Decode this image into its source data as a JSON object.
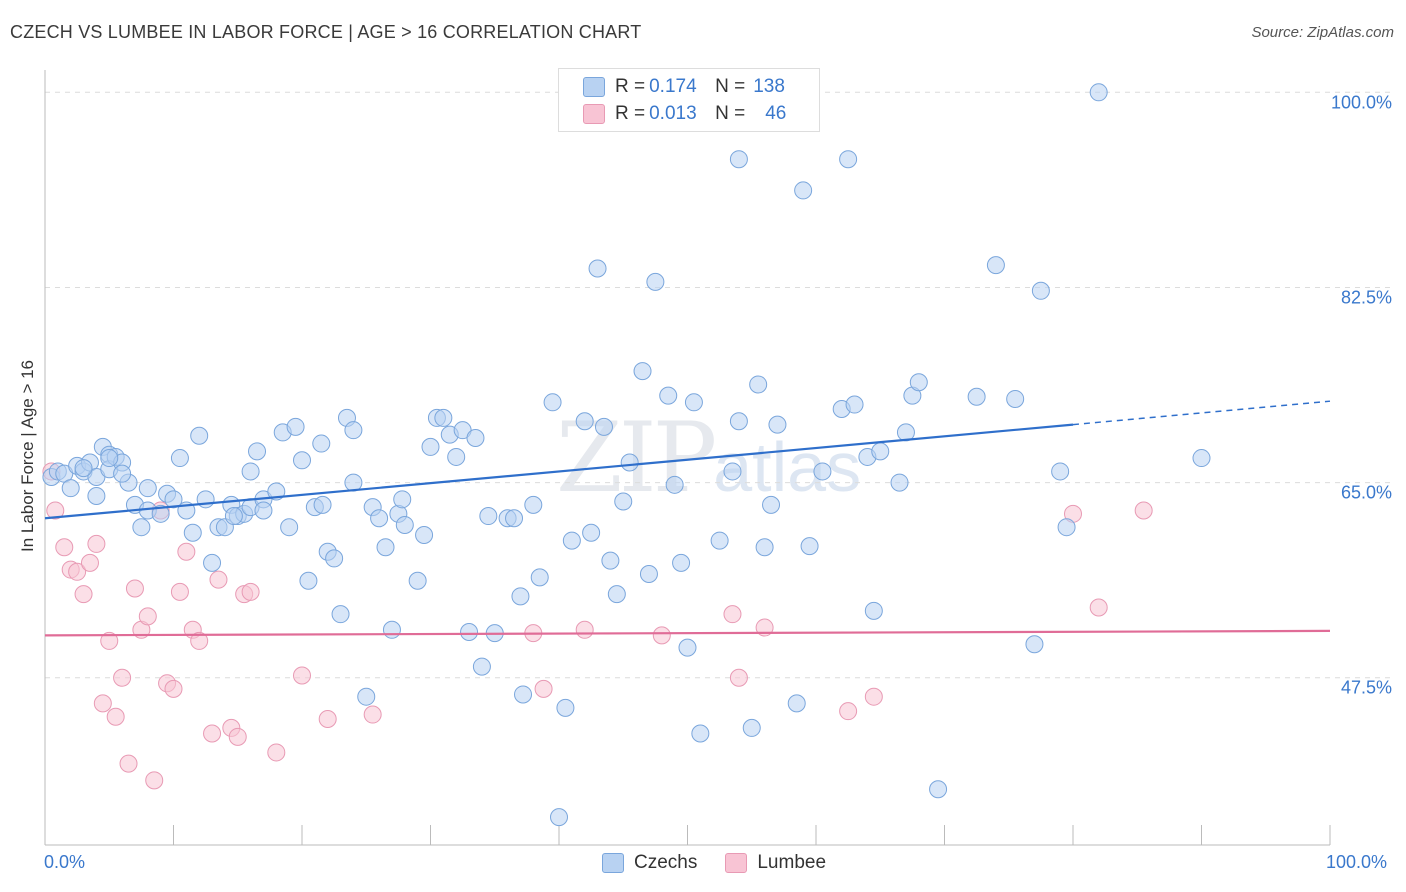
{
  "title": "CZECH VS LUMBEE IN LABOR FORCE | AGE > 16 CORRELATION CHART",
  "source": "Source: ZipAtlas.com",
  "watermark": {
    "part1": "ZIP",
    "part2": "atlas"
  },
  "legend": {
    "czechs": {
      "r_label": "R = ",
      "r_value": "0.174",
      "n_label": "N = ",
      "n_value": "138"
    },
    "lumbee": {
      "r_label": "R = ",
      "r_value": "0.013",
      "n_label": "N = ",
      "n_value": "46"
    }
  },
  "colors": {
    "czechs_fill": "#b8d2f2",
    "czechs_stroke": "#7aa6dc",
    "czechs_line": "#2f6fcb",
    "lumbee_fill": "#f8c4d4",
    "lumbee_stroke": "#e89ab4",
    "lumbee_line": "#e06c97",
    "tick_label": "#3a78cc",
    "grid": "#dcdcdc"
  },
  "chart_data": {
    "type": "scatter",
    "xlabel": "",
    "ylabel": "In Labor Force | Age > 16",
    "xlim": [
      0,
      100
    ],
    "ylim": [
      32.5,
      102
    ],
    "x_tick_labels": [
      "0.0%",
      "100.0%"
    ],
    "y_ticks": [
      47.5,
      65.0,
      82.5,
      100.0
    ],
    "y_tick_labels": [
      "47.5%",
      "65.0%",
      "82.5%",
      "100.0%"
    ],
    "grid": "horizontal dashed",
    "legend": [
      "Czechs",
      "Lumbee"
    ],
    "series": [
      {
        "name": "Czechs",
        "trend": {
          "x0": 0,
          "y0": 61.8,
          "x1": 80,
          "y1": 70.2,
          "dashed_to_x": 100,
          "dashed_to_y": 72.3
        },
        "points": [
          [
            0.5,
            65.5
          ],
          [
            1,
            66
          ],
          [
            1.5,
            65.8
          ],
          [
            2,
            64.5
          ],
          [
            2.5,
            66.5
          ],
          [
            3,
            66
          ],
          [
            3.5,
            66.8
          ],
          [
            4,
            65.5
          ],
          [
            4,
            63.8
          ],
          [
            4.5,
            68.2
          ],
          [
            5,
            67.5
          ],
          [
            5,
            66.2
          ],
          [
            5.5,
            67.3
          ],
          [
            6,
            66.8
          ],
          [
            6.5,
            65
          ],
          [
            7,
            63
          ],
          [
            7.5,
            61
          ],
          [
            8,
            62.5
          ],
          [
            8,
            64.5
          ],
          [
            9,
            62.2
          ],
          [
            9.5,
            64
          ],
          [
            10,
            63.5
          ],
          [
            10.5,
            67.2
          ],
          [
            11,
            62.5
          ],
          [
            11.5,
            60.5
          ],
          [
            12,
            69.2
          ],
          [
            12.5,
            63.5
          ],
          [
            13,
            57.8
          ],
          [
            13.5,
            61
          ],
          [
            14,
            61
          ],
          [
            14.5,
            63
          ],
          [
            15,
            62
          ],
          [
            15.5,
            62.2
          ],
          [
            16,
            66
          ],
          [
            16,
            62.8
          ],
          [
            16.5,
            67.8
          ],
          [
            17,
            63.5
          ],
          [
            17,
            62.5
          ],
          [
            18,
            64.2
          ],
          [
            18.5,
            69.5
          ],
          [
            19,
            61
          ],
          [
            19.5,
            70
          ],
          [
            20,
            67
          ],
          [
            20.5,
            56.2
          ],
          [
            21,
            62.8
          ],
          [
            21.5,
            68.5
          ],
          [
            22,
            58.8
          ],
          [
            22.5,
            58.2
          ],
          [
            23,
            53.2
          ],
          [
            23.5,
            70.8
          ],
          [
            24,
            65
          ],
          [
            24,
            69.7
          ],
          [
            25,
            45.8
          ],
          [
            25.5,
            62.8
          ],
          [
            26,
            61.8
          ],
          [
            26.5,
            59.2
          ],
          [
            27,
            51.8
          ],
          [
            27.5,
            62.2
          ],
          [
            27.8,
            63.5
          ],
          [
            28,
            61.2
          ],
          [
            29,
            56.2
          ],
          [
            29.5,
            60.3
          ],
          [
            30,
            68.2
          ],
          [
            30.5,
            70.8
          ],
          [
            31,
            70.8
          ],
          [
            31.5,
            69.3
          ],
          [
            32,
            67.3
          ],
          [
            32.5,
            69.7
          ],
          [
            33,
            51.6
          ],
          [
            33.5,
            69
          ],
          [
            34,
            48.5
          ],
          [
            34.5,
            62
          ],
          [
            35,
            51.5
          ],
          [
            36,
            61.8
          ],
          [
            36.5,
            61.8
          ],
          [
            37,
            54.8
          ],
          [
            37.2,
            46
          ],
          [
            38,
            63
          ],
          [
            38.5,
            56.5
          ],
          [
            39.5,
            72.2
          ],
          [
            40,
            35
          ],
          [
            40.5,
            44.8
          ],
          [
            41,
            59.8
          ],
          [
            42,
            70.5
          ],
          [
            42.5,
            60.5
          ],
          [
            43,
            84.2
          ],
          [
            43.5,
            70
          ],
          [
            44,
            58
          ],
          [
            44.5,
            55
          ],
          [
            45,
            63.3
          ],
          [
            45.5,
            66.8
          ],
          [
            46.5,
            75
          ],
          [
            47,
            56.8
          ],
          [
            47.5,
            83
          ],
          [
            48.5,
            72.8
          ],
          [
            49,
            64.8
          ],
          [
            49.5,
            57.8
          ],
          [
            50,
            50.2
          ],
          [
            50.5,
            72.2
          ],
          [
            51,
            42.5
          ],
          [
            52.5,
            59.8
          ],
          [
            53.5,
            66
          ],
          [
            54,
            70.5
          ],
          [
            54,
            94
          ],
          [
            55,
            43
          ],
          [
            55.5,
            73.8
          ],
          [
            56,
            59.2
          ],
          [
            56.5,
            63
          ],
          [
            57,
            70.2
          ],
          [
            58.5,
            45.2
          ],
          [
            59,
            91.2
          ],
          [
            59.5,
            59.3
          ],
          [
            60.5,
            66
          ],
          [
            62,
            71.6
          ],
          [
            62.5,
            94
          ],
          [
            63,
            72
          ],
          [
            64,
            67.3
          ],
          [
            64.5,
            53.5
          ],
          [
            65,
            67.8
          ],
          [
            66.5,
            65
          ],
          [
            67,
            69.5
          ],
          [
            67.5,
            72.8
          ],
          [
            68,
            74
          ],
          [
            69.5,
            37.5
          ],
          [
            72.5,
            72.7
          ],
          [
            74,
            84.5
          ],
          [
            75.5,
            72.5
          ],
          [
            77,
            50.5
          ],
          [
            77.5,
            82.2
          ],
          [
            79,
            66
          ],
          [
            79.5,
            61
          ],
          [
            82,
            100
          ],
          [
            90,
            67.2
          ],
          [
            5,
            67.2
          ],
          [
            14.7,
            62
          ],
          [
            21.6,
            63
          ],
          [
            6,
            65.8
          ],
          [
            3,
            66.3
          ]
        ]
      },
      {
        "name": "Lumbee",
        "trend": {
          "x0": 0,
          "y0": 51.3,
          "x1": 100,
          "y1": 51.7
        },
        "points": [
          [
            0.5,
            66
          ],
          [
            0.8,
            62.5
          ],
          [
            1.5,
            59.2
          ],
          [
            2,
            57.2
          ],
          [
            2.5,
            57
          ],
          [
            3,
            55
          ],
          [
            3.5,
            57.8
          ],
          [
            4,
            59.5
          ],
          [
            4.5,
            45.2
          ],
          [
            5,
            50.8
          ],
          [
            5.5,
            44
          ],
          [
            6,
            47.5
          ],
          [
            6.5,
            39.8
          ],
          [
            7,
            55.5
          ],
          [
            7.5,
            51.8
          ],
          [
            8,
            53
          ],
          [
            8.5,
            38.3
          ],
          [
            9,
            62.5
          ],
          [
            9.5,
            47
          ],
          [
            10,
            46.5
          ],
          [
            10.5,
            55.2
          ],
          [
            11,
            58.8
          ],
          [
            11.5,
            51.8
          ],
          [
            12,
            50.8
          ],
          [
            13,
            42.5
          ],
          [
            13.5,
            56.3
          ],
          [
            14.5,
            43
          ],
          [
            15,
            42.2
          ],
          [
            15.5,
            55
          ],
          [
            16,
            55.2
          ],
          [
            18,
            40.8
          ],
          [
            20,
            47.7
          ],
          [
            22,
            43.8
          ],
          [
            25.5,
            44.2
          ],
          [
            38,
            51.5
          ],
          [
            38.8,
            46.5
          ],
          [
            42,
            51.8
          ],
          [
            48,
            51.3
          ],
          [
            53.5,
            53.2
          ],
          [
            54,
            47.5
          ],
          [
            56,
            52
          ],
          [
            62.5,
            44.5
          ],
          [
            64.5,
            45.8
          ],
          [
            80,
            62.2
          ],
          [
            82,
            53.8
          ],
          [
            85.5,
            62.5
          ]
        ]
      }
    ]
  }
}
